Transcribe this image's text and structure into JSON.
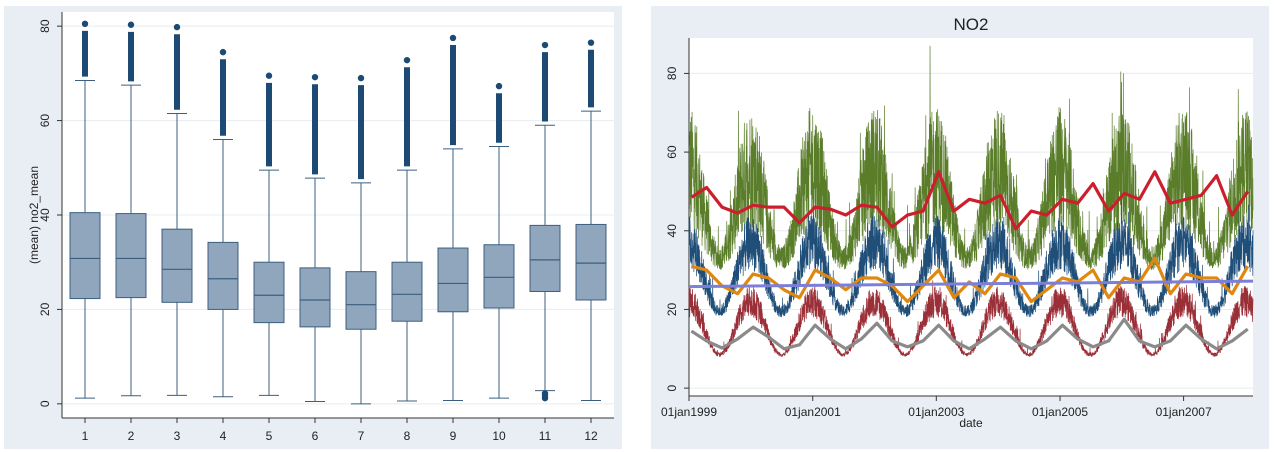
{
  "chart_data": [
    {
      "type": "box",
      "title": "",
      "xlabel": "",
      "ylabel": "(mean) no2_mean",
      "ylim": [
        -3,
        83
      ],
      "yticks": [
        0,
        20,
        40,
        60,
        80
      ],
      "grid": "horizontal",
      "categories": [
        "1",
        "2",
        "3",
        "4",
        "5",
        "6",
        "7",
        "8",
        "9",
        "10",
        "11",
        "12"
      ],
      "boxes": [
        {
          "min": 1.2,
          "q1": 22.3,
          "median": 30.8,
          "q3": 40.5,
          "whisker_high": 68.5,
          "outliers_low": [],
          "outliers_high_to": 80.5
        },
        {
          "min": 1.7,
          "q1": 22.5,
          "median": 30.8,
          "q3": 40.3,
          "whisker_high": 67.5,
          "outliers_low": [],
          "outliers_high_to": 80.3
        },
        {
          "min": 1.8,
          "q1": 21.5,
          "median": 28.5,
          "q3": 37.0,
          "whisker_high": 61.5,
          "outliers_low": [],
          "outliers_high_to": 79.8
        },
        {
          "min": 1.5,
          "q1": 20.0,
          "median": 26.5,
          "q3": 34.2,
          "whisker_high": 56.0,
          "outliers_low": [],
          "outliers_high_to": 74.5
        },
        {
          "min": 1.8,
          "q1": 17.2,
          "median": 23.0,
          "q3": 30.0,
          "whisker_high": 49.5,
          "outliers_low": [],
          "outliers_high_to": 69.5
        },
        {
          "min": 0.5,
          "q1": 16.3,
          "median": 22.0,
          "q3": 28.8,
          "whisker_high": 47.8,
          "outliers_low": [],
          "outliers_high_to": 69.2
        },
        {
          "min": 0.0,
          "q1": 15.8,
          "median": 21.0,
          "q3": 28.0,
          "whisker_high": 46.8,
          "outliers_low": [],
          "outliers_high_to": 69.0
        },
        {
          "min": 0.6,
          "q1": 17.5,
          "median": 23.2,
          "q3": 30.0,
          "whisker_high": 49.5,
          "outliers_low": [],
          "outliers_high_to": 72.8
        },
        {
          "min": 0.7,
          "q1": 19.5,
          "median": 25.5,
          "q3": 33.0,
          "whisker_high": 54.0,
          "outliers_low": [],
          "outliers_high_to": 77.5
        },
        {
          "min": 1.2,
          "q1": 20.3,
          "median": 26.8,
          "q3": 33.7,
          "whisker_high": 54.5,
          "outliers_low": [],
          "outliers_high_to": 67.3
        },
        {
          "min": 2.8,
          "q1": 23.8,
          "median": 30.5,
          "q3": 37.8,
          "whisker_high": 59.0,
          "outliers_low": [
            1.2,
            1.8,
            2.2
          ],
          "outliers_high_to": 76.0
        },
        {
          "min": 0.7,
          "q1": 22.0,
          "median": 29.8,
          "q3": 38.0,
          "whisker_high": 62.0,
          "outliers_low": [],
          "outliers_high_to": 76.5
        }
      ],
      "box_color": "#8fa6bd",
      "marker_color": "#1c4a75"
    },
    {
      "type": "line",
      "title": "NO2",
      "xlabel": "date",
      "ylabel": "",
      "xlim": [
        "1999-01-01",
        "2008-02-15"
      ],
      "ylim": [
        -2,
        89
      ],
      "xticks": [
        "01jan1999",
        "01jan2001",
        "01jan2003",
        "01jan2005",
        "01jan2007"
      ],
      "xtick_dates": [
        "1999-01-01",
        "2001-01-01",
        "2003-01-01",
        "2005-01-01",
        "2007-01-01"
      ],
      "yticks": [
        0,
        20,
        40,
        60,
        80
      ],
      "grid": "horizontal",
      "monthly_x": [
        "1999-01",
        "1999-04",
        "1999-07",
        "1999-10",
        "2000-01",
        "2000-04",
        "2000-07",
        "2000-10",
        "2001-01",
        "2001-04",
        "2001-07",
        "2001-10",
        "2002-01",
        "2002-04",
        "2002-07",
        "2002-10",
        "2003-01",
        "2003-04",
        "2003-07",
        "2003-10",
        "2004-01",
        "2004-04",
        "2004-07",
        "2004-10",
        "2005-01",
        "2005-04",
        "2005-07",
        "2005-10",
        "2006-01",
        "2006-04",
        "2006-07",
        "2006-10",
        "2007-01",
        "2007-04",
        "2007-07",
        "2007-10",
        "2008-01"
      ],
      "series": [
        {
          "color": "#5a7d2a",
          "kind": "daily",
          "period_months": 12,
          "min_phase": "2001-07",
          "base": [
            30,
            40
          ],
          "amp": [
            6,
            32
          ],
          "peaks": [
            {
              "date": "2002-11-25",
              "value": 87
            },
            {
              "date": "2006-01-10",
              "value": 80
            },
            {
              "date": "2007-11-20",
              "value": 76
            }
          ]
        },
        {
          "color": "#1f4e79",
          "kind": "daily",
          "period_months": 12,
          "min_phase": "2001-07",
          "base": [
            18,
            30
          ],
          "amp": [
            3,
            14
          ]
        },
        {
          "color": "#9b2f38",
          "kind": "daily",
          "period_months": 12,
          "min_phase": "2001-07",
          "base": [
            8,
            18
          ],
          "amp": [
            1,
            8
          ]
        },
        {
          "color": "#cc1f2e",
          "kind": "monthly",
          "values": [
            48.5,
            51,
            46,
            44.5,
            46.5,
            46,
            46,
            42,
            46,
            45.5,
            44,
            46.5,
            46,
            41,
            44,
            45,
            55,
            45,
            48,
            47,
            49,
            40.5,
            45,
            44,
            48,
            47,
            52,
            45,
            49.5,
            48,
            55,
            47,
            48,
            49,
            54,
            44,
            50
          ]
        },
        {
          "color": "#e0870f",
          "kind": "monthly",
          "values": [
            31,
            30,
            26,
            24,
            29,
            28,
            25,
            23,
            30,
            28,
            25,
            28,
            28,
            26,
            22,
            26,
            30,
            23,
            27,
            24,
            29,
            28,
            22,
            25,
            28,
            27,
            30,
            23,
            28,
            27,
            33,
            24,
            29,
            28,
            28,
            24,
            31
          ]
        },
        {
          "color": "#8a8a8a",
          "kind": "monthly",
          "values": [
            14.5,
            12,
            10.2,
            12.5,
            15.5,
            13,
            10,
            11,
            16,
            12.5,
            10,
            12.5,
            16.5,
            12,
            10.5,
            12,
            16,
            12,
            10,
            12.5,
            15.5,
            12,
            10,
            12,
            16,
            12.5,
            10.5,
            12,
            17.5,
            12,
            10.5,
            12,
            16,
            12.5,
            10,
            12,
            15
          ]
        },
        {
          "color": "#7b7fd8",
          "kind": "trend",
          "values": [
            25.8,
            27.2
          ]
        }
      ]
    }
  ]
}
